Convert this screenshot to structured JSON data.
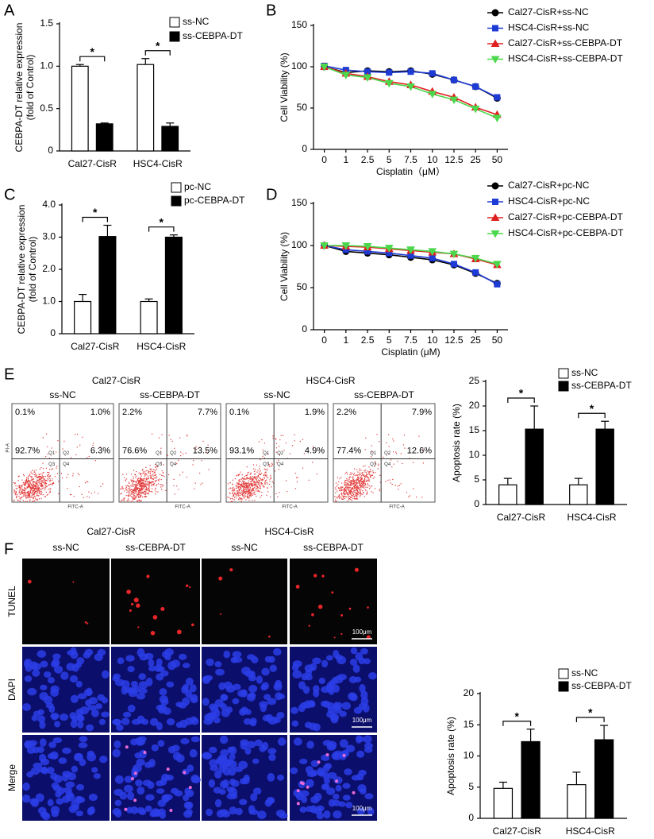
{
  "panels": [
    "A",
    "B",
    "C",
    "D",
    "E",
    "F"
  ],
  "chart_data": [
    {
      "type": "bar",
      "ylabel": [
        "CEBPA-DT relative expression",
        "(fold of Control)"
      ],
      "categories": [
        "Cal27-CisR",
        "HSC4-CisR"
      ],
      "series": [
        {
          "name": "ss-NC",
          "color": "#ffffff",
          "values": [
            1.0,
            1.02
          ],
          "errors": [
            0.02,
            0.07
          ]
        },
        {
          "name": "ss-CEBPA-DT",
          "color": "#000000",
          "values": [
            0.32,
            0.29
          ],
          "errors": [
            0.01,
            0.04
          ]
        }
      ],
      "annotations": [
        "*",
        "*"
      ],
      "ylim": [
        0,
        1.5
      ],
      "yticks": [
        0,
        0.5,
        {
          "value": 1,
          "label": "1.0"
        },
        1.5
      ]
    },
    {
      "type": "line",
      "ylabel": [
        "Cell Viability (%)"
      ],
      "xlabel": "Cisplatin（μM）",
      "categories": [
        "0",
        "1",
        "2.5",
        "5",
        "7.5",
        "10",
        "12.5",
        "25",
        "50"
      ],
      "series": [
        {
          "name": "Cal27-CisR+ss-NC",
          "color": "#000000",
          "marker": "circle",
          "values": [
            100,
            93,
            95,
            94,
            95,
            91,
            84,
            76,
            62
          ]
        },
        {
          "name": "HSC4-CisR+ss-NC",
          "color": "#1f3bd6",
          "marker": "square",
          "values": [
            101,
            96,
            94,
            93,
            94,
            92,
            84,
            76,
            63
          ]
        },
        {
          "name": "Cal27-CisR+ss-CEBPA-DT",
          "color": "#e02020",
          "marker": "triangle-up",
          "values": [
            100,
            92,
            88,
            82,
            78,
            70,
            63,
            51,
            42
          ]
        },
        {
          "name": "HSC4-CisR+ss-CEBPA-DT",
          "color": "#4cd84c",
          "marker": "triangle-down",
          "values": [
            100,
            90,
            87,
            80,
            76,
            67,
            60,
            49,
            38
          ]
        }
      ],
      "ylim": [
        0,
        150
      ],
      "yticks": [
        0,
        50,
        100,
        150
      ]
    },
    {
      "type": "bar",
      "ylabel": [
        "CEBPA-DT relative expression",
        "(fold of Control)"
      ],
      "categories": [
        "Cal27-CisR",
        "HSC4-CisR"
      ],
      "series": [
        {
          "name": "pc-NC",
          "color": "#ffffff",
          "values": [
            1.0,
            1.0
          ],
          "errors": [
            0.22,
            0.08
          ]
        },
        {
          "name": "pc-CEBPA-DT",
          "color": "#000000",
          "values": [
            3.02,
            3.0
          ],
          "errors": [
            0.35,
            0.07
          ]
        }
      ],
      "annotations": [
        "*",
        "*"
      ],
      "ylim": [
        0,
        4
      ],
      "yticks": [
        0,
        {
          "value": 1,
          "label": "1.0"
        },
        {
          "value": 2,
          "label": "2.0"
        },
        {
          "value": 3,
          "label": "3.0"
        },
        {
          "value": 4,
          "label": "4.0"
        }
      ]
    },
    {
      "type": "line",
      "ylabel": [
        "Cell Viability (%)"
      ],
      "xlabel": "Cisplatin (μM)",
      "categories": [
        "0",
        "1",
        "2.5",
        "5",
        "7.5",
        "10",
        "12.5",
        "25",
        "50"
      ],
      "series": [
        {
          "name": "Cal27-CisR+pc-NC",
          "color": "#000000",
          "marker": "circle",
          "values": [
            100,
            93,
            91,
            89,
            86,
            83,
            77,
            67,
            55
          ]
        },
        {
          "name": "HSC4-CisR+pc-NC",
          "color": "#1f3bd6",
          "marker": "square",
          "values": [
            100,
            95,
            93,
            91,
            88,
            85,
            78,
            68,
            54
          ]
        },
        {
          "name": "Cal27-CisR+pc-CEBPA-DT",
          "color": "#e02020",
          "marker": "triangle-up",
          "values": [
            100,
            99,
            98,
            96,
            94,
            92,
            90,
            84,
            77
          ]
        },
        {
          "name": "HSC4-CisR+pc-CEBPA-DT",
          "color": "#4cd84c",
          "marker": "triangle-down",
          "values": [
            100,
            100,
            99,
            97,
            95,
            93,
            90,
            85,
            78
          ]
        }
      ],
      "ylim": [
        0,
        150
      ],
      "yticks": [
        0,
        50,
        100,
        150
      ]
    },
    {
      "type": "bar",
      "ylabel": [
        "Apoptosis rate (%)"
      ],
      "categories": [
        "Cal27-CisR",
        "HSC4-CisR"
      ],
      "series": [
        {
          "name": "ss-NC",
          "color": "#ffffff",
          "values": [
            4.0,
            4.0
          ],
          "errors": [
            1.3,
            1.3
          ]
        },
        {
          "name": "ss-CEBPA-DT",
          "color": "#000000",
          "values": [
            15.3,
            15.3
          ],
          "errors": [
            4.7,
            1.6
          ]
        }
      ],
      "annotations": [
        "*",
        "*"
      ],
      "ylim": [
        0,
        25
      ],
      "yticks": [
        0,
        5,
        10,
        15,
        20,
        25
      ]
    },
    {
      "type": "bar",
      "ylabel": [
        "Apoptosis rate (%)"
      ],
      "categories": [
        "Cal27-CisR",
        "HSC4-CisR"
      ],
      "series": [
        {
          "name": "ss-NC",
          "color": "#ffffff",
          "values": [
            4.8,
            5.4
          ],
          "errors": [
            1.0,
            2.0
          ]
        },
        {
          "name": "ss-CEBPA-DT",
          "color": "#000000",
          "values": [
            12.3,
            12.6
          ],
          "errors": [
            2.0,
            2.3
          ]
        }
      ],
      "annotations": [
        "*",
        "*"
      ],
      "ylim": [
        0,
        20
      ],
      "yticks": [
        0,
        5,
        10,
        15,
        20
      ]
    }
  ],
  "flow": {
    "groups": [
      "Cal27-CisR",
      "HSC4-CisR"
    ],
    "y_label": "PI-A",
    "x_label": "FITC-A",
    "gates": [
      "Q1",
      "Q2",
      "Q3",
      "Q4"
    ],
    "plots": [
      {
        "condition": "ss-NC",
        "quadrants": [
          "0.1%",
          "1.0%",
          "92.7%",
          "6.3%"
        ]
      },
      {
        "condition": "ss-CEBPA-DT",
        "quadrants": [
          "2.2%",
          "7.7%",
          "76.6%",
          "13.5%"
        ]
      },
      {
        "condition": "ss-NC",
        "quadrants": [
          "0.1%",
          "1.9%",
          "93.1%",
          "4.9%"
        ]
      },
      {
        "condition": "ss-CEBPA-DT",
        "quadrants": [
          "2.2%",
          "7.9%",
          "77.4%",
          "12.6%"
        ]
      }
    ]
  },
  "microscopy": {
    "groups": [
      "Cal27-CisR",
      "HSC4-CisR"
    ],
    "conditions": [
      "ss-NC",
      "ss-CEBPA-DT",
      "ss-NC",
      "ss-CEBPA-DT"
    ],
    "rows": [
      "TUNEL",
      "DAPI",
      "Merge"
    ],
    "scale_bar": "100μm"
  }
}
